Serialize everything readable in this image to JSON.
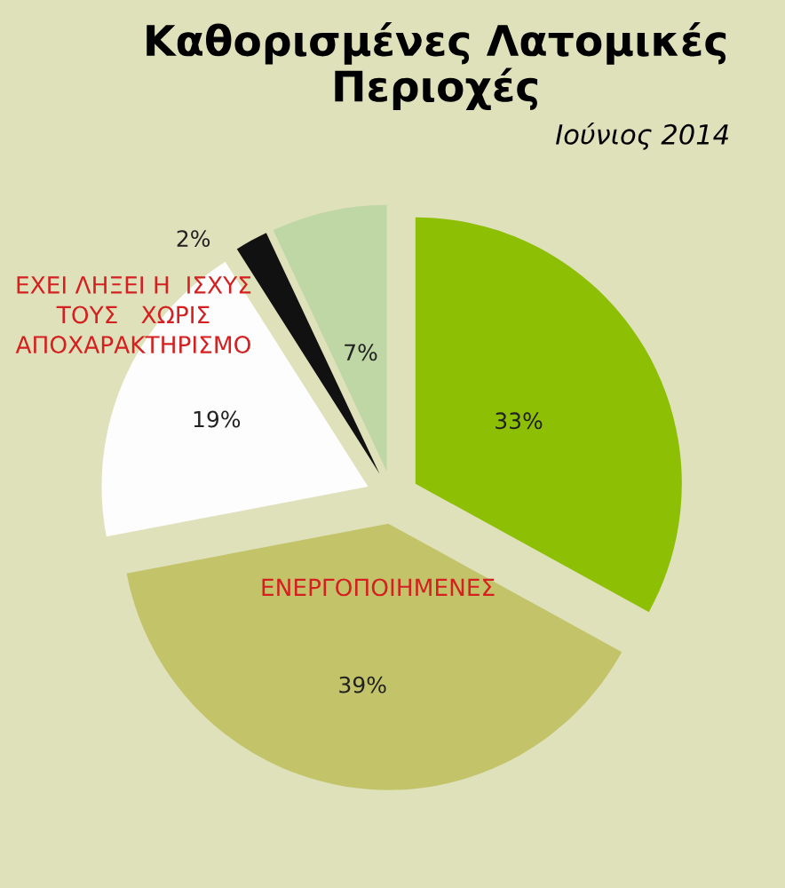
{
  "chart_data": {
    "type": "pie",
    "title": "Καθορισμένες Λατομικές\nΠεριοχές",
    "subtitle": "Ιούνιος 2014",
    "categories": [
      null,
      "ΕΝΕΡΓΟΠΟΙΗΜΕΝΕΣ",
      "ΕΧΕΙ ΛΗΞΕΙ Η  ΙΣΧΥΣ\nΤΟΥΣ   ΧΩΡΙΣ\nΑΠΟΧΑΡΑΚΤΗΡΙΣΜΟ",
      null,
      null
    ],
    "values": [
      33,
      39,
      19,
      2,
      7
    ],
    "value_labels": [
      "33%",
      "39%",
      "19%",
      "2%",
      "7%"
    ],
    "colors": [
      "#8dbf04",
      "#c3c46a",
      "#fdfdfd",
      "#111111",
      "#bfd7a4"
    ],
    "legend": false
  }
}
